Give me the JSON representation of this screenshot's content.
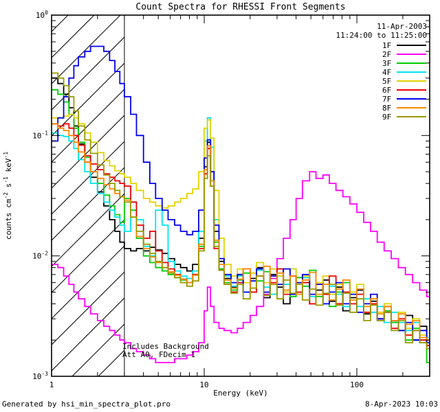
{
  "title": "Count Spectra for RHESSI Front Segments",
  "header": {
    "date": "11-Apr-2003",
    "time_range": "11:24:00 to 11:25:00"
  },
  "annotations": {
    "line1": "Includes Background",
    "line2": "Att A0, FDecim 1"
  },
  "footer": {
    "left": "Generated by hsi_min_spectra_plot.pro",
    "right": "8-Apr-2023 10:03"
  },
  "axes": {
    "xlabel": "Energy (keV)",
    "ylabel_plain": "counts cm-2 s-1 keV-1",
    "ylabel_parts": [
      {
        "text": "counts cm"
      },
      {
        "text": "-2",
        "sup": true
      },
      {
        "text": " s"
      },
      {
        "text": "-1",
        "sup": true
      },
      {
        "text": " keV"
      },
      {
        "text": "-1",
        "sup": true
      }
    ],
    "x_ticks": [
      {
        "label": "1",
        "value": 1
      },
      {
        "label": "10",
        "value": 10
      },
      {
        "label": "100",
        "value": 100
      }
    ],
    "y_ticks": [
      {
        "base": "10",
        "exp": "0",
        "value": 1
      },
      {
        "base": "10",
        "exp": "-1",
        "value": 0.1
      },
      {
        "base": "10",
        "exp": "-2",
        "value": 0.01
      },
      {
        "base": "10",
        "exp": "-3",
        "value": 0.001
      }
    ]
  },
  "chart_data": {
    "type": "line",
    "subtype": "step-histogram",
    "title": "Count Spectra for RHESSI Front Segments",
    "xlabel": "Energy (keV)",
    "ylabel": "counts cm^-2 s^-1 keV^-1",
    "x_scale": "log",
    "y_scale": "log",
    "xlim": [
      1,
      300
    ],
    "ylim": [
      0.001,
      1
    ],
    "grid": false,
    "legend_position": "top-right",
    "hatch_region_kev": [
      1,
      3
    ],
    "energies_kev": [
      1.0,
      1.1,
      1.2,
      1.3,
      1.4,
      1.5,
      1.65,
      1.8,
      2.0,
      2.2,
      2.4,
      2.6,
      2.8,
      3.0,
      3.3,
      3.6,
      4.0,
      4.4,
      4.8,
      5.3,
      5.8,
      6.4,
      7.0,
      7.7,
      8.4,
      9.2,
      10.0,
      10.5,
      11.0,
      11.6,
      12.5,
      13.5,
      15.0,
      16.5,
      18.0,
      20.0,
      22.0,
      24.5,
      27.0,
      30.0,
      33.0,
      36.5,
      40.0,
      44.0,
      49.0,
      54.0,
      60.0,
      66.0,
      73.0,
      81.0,
      90.0,
      100.0,
      111.0,
      123.0,
      136.0,
      151.0,
      168.0,
      187.0,
      208.0,
      232.0,
      258.0,
      287.0,
      300.0
    ],
    "series": [
      {
        "name": "1F",
        "color": "#000000",
        "values": [
          0.3,
          0.27,
          0.22,
          0.17,
          0.12,
          0.085,
          0.06,
          0.045,
          0.034,
          0.026,
          0.02,
          0.016,
          0.013,
          0.0115,
          0.011,
          0.0115,
          0.011,
          0.0118,
          0.0112,
          0.0105,
          0.0095,
          0.0085,
          0.008,
          0.0075,
          0.0085,
          0.014,
          0.055,
          0.088,
          0.05,
          0.016,
          0.009,
          0.0065,
          0.0055,
          0.007,
          0.005,
          0.0065,
          0.008,
          0.0045,
          0.007,
          0.0055,
          0.004,
          0.0068,
          0.005,
          0.006,
          0.004,
          0.0052,
          0.0063,
          0.0042,
          0.0055,
          0.0035,
          0.0045,
          0.0052,
          0.0033,
          0.0042,
          0.003,
          0.0038,
          0.0028,
          0.0024,
          0.0032,
          0.002,
          0.0026,
          0.0018,
          0.0018
        ]
      },
      {
        "name": "2F",
        "color": "#ff00ff",
        "values": [
          0.0085,
          0.008,
          0.0068,
          0.0058,
          0.005,
          0.0044,
          0.0038,
          0.0033,
          0.0029,
          0.0026,
          0.0024,
          0.0022,
          0.002,
          0.0019,
          0.0017,
          0.0016,
          0.0015,
          0.0014,
          0.0013,
          0.0013,
          0.0013,
          0.0014,
          0.0014,
          0.0015,
          0.0016,
          0.0019,
          0.0035,
          0.0055,
          0.0038,
          0.0028,
          0.0025,
          0.0024,
          0.0023,
          0.0025,
          0.0028,
          0.0032,
          0.0038,
          0.0048,
          0.0065,
          0.0095,
          0.014,
          0.02,
          0.03,
          0.042,
          0.05,
          0.044,
          0.047,
          0.04,
          0.035,
          0.031,
          0.027,
          0.023,
          0.019,
          0.016,
          0.013,
          0.011,
          0.0095,
          0.008,
          0.007,
          0.006,
          0.0052,
          0.0046,
          0.0045
        ]
      },
      {
        "name": "3F",
        "color": "#00cc00",
        "values": [
          0.24,
          0.22,
          0.19,
          0.15,
          0.115,
          0.088,
          0.066,
          0.05,
          0.04,
          0.032,
          0.026,
          0.022,
          0.019,
          0.03,
          0.024,
          0.014,
          0.01,
          0.0088,
          0.008,
          0.0075,
          0.007,
          0.0066,
          0.0063,
          0.006,
          0.007,
          0.012,
          0.048,
          0.078,
          0.042,
          0.013,
          0.0078,
          0.006,
          0.0052,
          0.0063,
          0.0072,
          0.005,
          0.0062,
          0.0074,
          0.0048,
          0.0078,
          0.0058,
          0.0046,
          0.0066,
          0.0056,
          0.0076,
          0.0046,
          0.0058,
          0.0038,
          0.005,
          0.006,
          0.004,
          0.0048,
          0.0034,
          0.004,
          0.0029,
          0.0035,
          0.0028,
          0.0024,
          0.002,
          0.0025,
          0.0019,
          0.0013,
          0.0013
        ]
      },
      {
        "name": "4F",
        "color": "#00e5ee",
        "values": [
          0.105,
          0.1,
          0.098,
          0.09,
          0.078,
          0.063,
          0.05,
          0.04,
          0.033,
          0.028,
          0.024,
          0.021,
          0.018,
          0.016,
          0.028,
          0.02,
          0.012,
          0.01,
          0.024,
          0.018,
          0.009,
          0.0075,
          0.0068,
          0.0065,
          0.0075,
          0.016,
          0.09,
          0.14,
          0.08,
          0.02,
          0.0095,
          0.0068,
          0.0056,
          0.0068,
          0.005,
          0.0062,
          0.0076,
          0.0055,
          0.0048,
          0.0068,
          0.0058,
          0.0078,
          0.0048,
          0.0066,
          0.0046,
          0.0058,
          0.004,
          0.0056,
          0.0048,
          0.0038,
          0.0048,
          0.0038,
          0.0044,
          0.0034,
          0.0038,
          0.0028,
          0.0034,
          0.0028,
          0.0024,
          0.0028,
          0.002,
          0.0021,
          0.002
        ]
      },
      {
        "name": "5F",
        "color": "#e3d200",
        "values": [
          0.14,
          0.14,
          0.145,
          0.15,
          0.14,
          0.125,
          0.105,
          0.088,
          0.072,
          0.062,
          0.056,
          0.051,
          0.048,
          0.045,
          0.04,
          0.035,
          0.03,
          0.028,
          0.026,
          0.025,
          0.026,
          0.028,
          0.03,
          0.033,
          0.036,
          0.05,
          0.115,
          0.135,
          0.095,
          0.035,
          0.014,
          0.0085,
          0.0068,
          0.0078,
          0.006,
          0.0072,
          0.0088,
          0.006,
          0.0078,
          0.0068,
          0.005,
          0.0078,
          0.0058,
          0.0068,
          0.0048,
          0.006,
          0.0068,
          0.0048,
          0.0058,
          0.004,
          0.005,
          0.0058,
          0.004,
          0.0048,
          0.0034,
          0.004,
          0.0029,
          0.0034,
          0.0025,
          0.003,
          0.0022,
          0.002,
          0.002
        ]
      },
      {
        "name": "6F",
        "color": "#ee0000",
        "values": [
          0.125,
          0.12,
          0.125,
          0.115,
          0.1,
          0.083,
          0.068,
          0.058,
          0.052,
          0.048,
          0.045,
          0.042,
          0.04,
          0.038,
          0.028,
          0.018,
          0.014,
          0.016,
          0.011,
          0.0088,
          0.0078,
          0.007,
          0.0064,
          0.006,
          0.007,
          0.0115,
          0.048,
          0.078,
          0.038,
          0.0115,
          0.0076,
          0.0058,
          0.005,
          0.006,
          0.0078,
          0.005,
          0.0068,
          0.005,
          0.006,
          0.0078,
          0.0048,
          0.0068,
          0.005,
          0.006,
          0.004,
          0.0058,
          0.0048,
          0.0068,
          0.004,
          0.005,
          0.004,
          0.0048,
          0.0034,
          0.004,
          0.003,
          0.0034,
          0.0025,
          0.003,
          0.0022,
          0.0024,
          0.002,
          0.0018,
          0.0018
        ]
      },
      {
        "name": "7F",
        "color": "#0000ee",
        "values": [
          0.09,
          0.14,
          0.21,
          0.3,
          0.38,
          0.45,
          0.5,
          0.55,
          0.55,
          0.5,
          0.42,
          0.34,
          0.27,
          0.21,
          0.15,
          0.1,
          0.06,
          0.04,
          0.03,
          0.024,
          0.02,
          0.018,
          0.016,
          0.015,
          0.016,
          0.024,
          0.065,
          0.092,
          0.05,
          0.018,
          0.0095,
          0.007,
          0.006,
          0.007,
          0.005,
          0.0062,
          0.0078,
          0.005,
          0.0068,
          0.0058,
          0.0078,
          0.0048,
          0.006,
          0.007,
          0.0048,
          0.0058,
          0.004,
          0.005,
          0.006,
          0.004,
          0.0048,
          0.0034,
          0.004,
          0.0048,
          0.003,
          0.0034,
          0.0029,
          0.0024,
          0.0028,
          0.002,
          0.0024,
          0.0019,
          0.0019
        ]
      },
      {
        "name": "8F",
        "color": "#ff8800",
        "values": [
          0.125,
          0.115,
          0.11,
          0.1,
          0.088,
          0.073,
          0.06,
          0.05,
          0.044,
          0.039,
          0.036,
          0.033,
          0.031,
          0.029,
          0.021,
          0.0145,
          0.0115,
          0.0098,
          0.0088,
          0.008,
          0.0074,
          0.0069,
          0.0064,
          0.006,
          0.0069,
          0.0125,
          0.052,
          0.082,
          0.042,
          0.0135,
          0.0085,
          0.0063,
          0.0054,
          0.0064,
          0.0078,
          0.0054,
          0.0068,
          0.0082,
          0.0058,
          0.0072,
          0.0052,
          0.0068,
          0.0048,
          0.0063,
          0.0073,
          0.0048,
          0.0058,
          0.0043,
          0.0053,
          0.0063,
          0.0043,
          0.0053,
          0.0038,
          0.0044,
          0.0033,
          0.0038,
          0.0029,
          0.0033,
          0.0027,
          0.0029,
          0.0021,
          0.002,
          0.002
        ]
      },
      {
        "name": "9F",
        "color": "#9a9a00",
        "values": [
          0.33,
          0.3,
          0.26,
          0.21,
          0.16,
          0.12,
          0.092,
          0.071,
          0.057,
          0.047,
          0.04,
          0.035,
          0.031,
          0.028,
          0.021,
          0.016,
          0.0125,
          0.0105,
          0.009,
          0.008,
          0.0072,
          0.0066,
          0.006,
          0.0056,
          0.0062,
          0.011,
          0.044,
          0.068,
          0.038,
          0.012,
          0.0076,
          0.0058,
          0.0049,
          0.0058,
          0.0044,
          0.0054,
          0.0068,
          0.0047,
          0.0058,
          0.0044,
          0.0063,
          0.0049,
          0.0058,
          0.0043,
          0.0053,
          0.0039,
          0.0049,
          0.0058,
          0.0039,
          0.0049,
          0.0034,
          0.0044,
          0.0029,
          0.0039,
          0.0029,
          0.0034,
          0.0024,
          0.0029,
          0.0019,
          0.0024,
          0.0019,
          0.0017,
          0.0017
        ]
      }
    ]
  }
}
